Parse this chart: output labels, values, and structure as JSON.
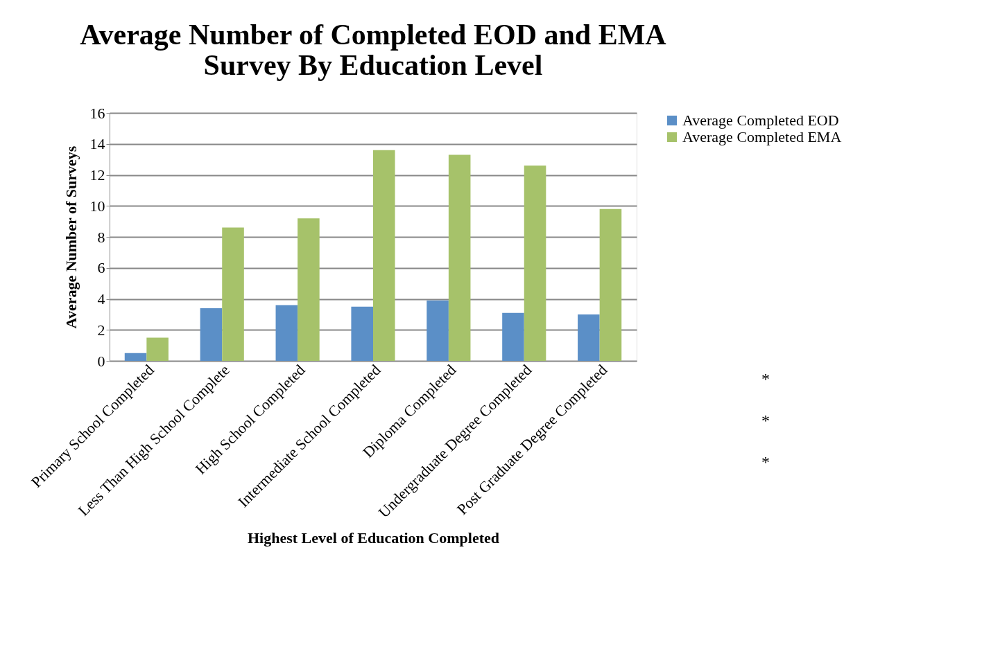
{
  "chart_data": {
    "type": "bar",
    "title": [
      "Average Number of Completed EOD and EMA",
      "Survey By Education Level"
    ],
    "xlabel": "Highest Level of Education Completed",
    "ylabel": "Average Number of Surveys",
    "categories": [
      "Primary School Completed",
      "Less Than High School Complete",
      "High School Completed",
      "Intermediate School Completed",
      "Diploma Completed",
      "Undergraduate Degree Completed",
      "Post Graduate Degree Completed"
    ],
    "series": [
      {
        "name": "Average Completed EOD",
        "color": "#5b8fc7",
        "values": [
          0.5,
          3.4,
          3.6,
          3.5,
          3.9,
          3.1,
          3.0
        ]
      },
      {
        "name": "Average Completed EMA",
        "color": "#a6c26a",
        "values": [
          1.5,
          8.6,
          9.2,
          13.6,
          13.3,
          12.6,
          9.8
        ]
      }
    ],
    "ylim": [
      0,
      16
    ],
    "yticks": [
      0,
      2,
      4,
      6,
      8,
      10,
      12,
      14,
      16
    ],
    "grid": "y",
    "legend": "right",
    "annotations": [
      "*",
      "*",
      "*"
    ]
  }
}
